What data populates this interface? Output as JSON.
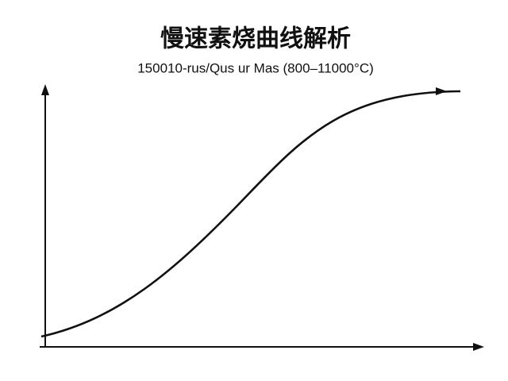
{
  "chart_data": {
    "type": "line",
    "title": "慢速素烧曲线解析",
    "subtitle": "150010-rus/Qus ur Mas (800–11000°C)"
  }
}
